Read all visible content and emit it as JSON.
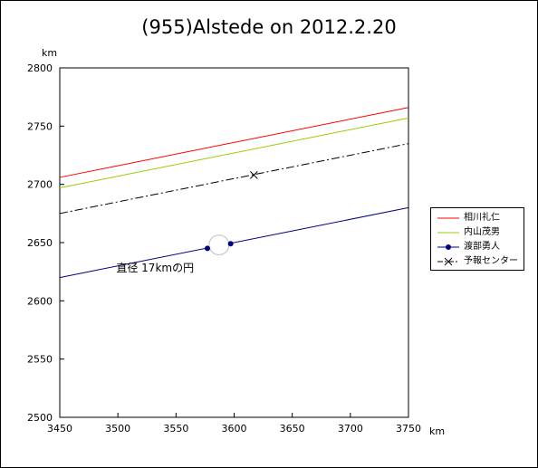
{
  "chart_data": {
    "type": "line",
    "title": "(955)Alstede on 2012.2.20",
    "xlabel": "km",
    "ylabel": "km",
    "xlim": [
      3450,
      3750
    ],
    "ylim": [
      2500,
      2800
    ],
    "x_ticks": [
      3450,
      3500,
      3550,
      3600,
      3650,
      3700,
      3750
    ],
    "y_ticks": [
      2500,
      2550,
      2600,
      2650,
      2700,
      2750,
      2800
    ],
    "grid": false,
    "legend_position": "right",
    "series": [
      {
        "name": "相川礼仁",
        "color": "#ff0000",
        "style": "solid",
        "markers": false,
        "x": [
          3450,
          3750
        ],
        "y": [
          2706,
          2766
        ]
      },
      {
        "name": "内山茂男",
        "color": "#99cc00",
        "style": "solid",
        "markers": false,
        "x": [
          3450,
          3750
        ],
        "y": [
          2697,
          2757
        ]
      },
      {
        "name": "渡部勇人",
        "color": "#000080",
        "style": "solid",
        "markers": true,
        "x": [
          3450,
          3750
        ],
        "y": [
          2620,
          2680
        ],
        "points": [
          {
            "x": 3577,
            "y": 2645
          },
          {
            "x": 3597,
            "y": 2649
          }
        ]
      },
      {
        "name": "予報センター",
        "color": "#000000",
        "style": "dashdot",
        "markers": false,
        "x": [
          3450,
          3750
        ],
        "y": [
          2675,
          2735
        ],
        "points": [
          {
            "x": 3617,
            "y": 2708
          }
        ]
      }
    ],
    "circle": {
      "center_x": 3587,
      "center_y": 2648,
      "diameter_km": 17
    },
    "annotations": [
      {
        "text": "直径 17kmの円",
        "x": 3532,
        "y": 2625
      }
    ]
  }
}
